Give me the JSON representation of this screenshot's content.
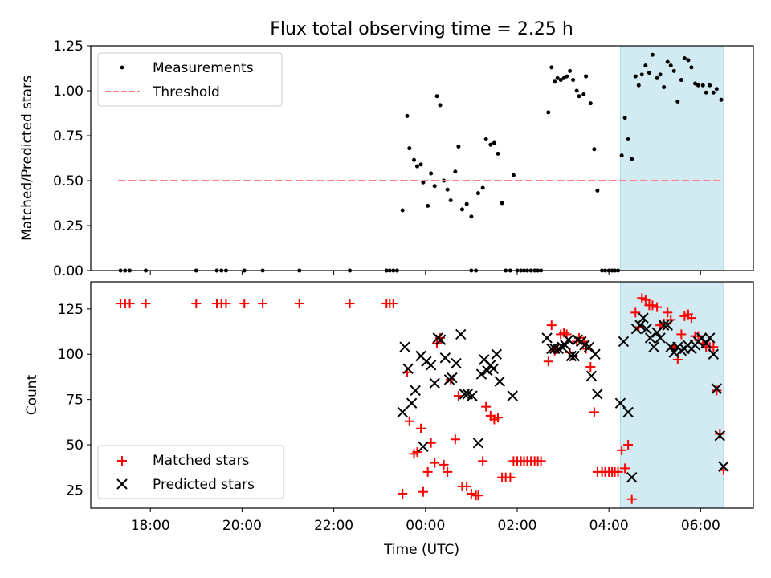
{
  "chart_data": {
    "type": "scatter",
    "title": "Flux total observing time = 2.25 h",
    "xlabel": "Time (UTC)",
    "x_unit": "hours since 00:00 UTC",
    "x_ticks": [
      {
        "v": -6,
        "label": "18:00"
      },
      {
        "v": -4,
        "label": "20:00"
      },
      {
        "v": -2,
        "label": "22:00"
      },
      {
        "v": 0,
        "label": "00:00"
      },
      {
        "v": 2,
        "label": "02:00"
      },
      {
        "v": 4,
        "label": "04:00"
      },
      {
        "v": 6,
        "label": "06:00"
      }
    ],
    "xlim": [
      -7.3,
      7.15
    ],
    "highlight_span": [
      4.25,
      6.5
    ],
    "highlight_color": "#add8e6",
    "top": {
      "ylabel": "Matched/Predicted stars",
      "ylim": [
        0,
        1.25
      ],
      "y_ticks": [
        {
          "v": 0,
          "label": "0.00"
        },
        {
          "v": 0.25,
          "label": "0.25"
        },
        {
          "v": 0.5,
          "label": "0.50"
        },
        {
          "v": 0.75,
          "label": "0.75"
        },
        {
          "v": 1.0,
          "label": "1.00"
        },
        {
          "v": 1.25,
          "label": "1.25"
        }
      ],
      "threshold": {
        "value": 0.5,
        "x_range": [
          -6.7,
          6.5
        ],
        "color": "#ff7f7f"
      },
      "legend": {
        "loc": "upper left",
        "measurements": "Measurements",
        "threshold": "Threshold"
      },
      "measurements": [
        [
          -6.65,
          0
        ],
        [
          -6.55,
          0
        ],
        [
          -6.45,
          0
        ],
        [
          -6.1,
          0
        ],
        [
          -5.0,
          0
        ],
        [
          -4.55,
          0
        ],
        [
          -4.45,
          0
        ],
        [
          -4.35,
          0
        ],
        [
          -3.95,
          0
        ],
        [
          -3.55,
          0
        ],
        [
          -2.75,
          0
        ],
        [
          -1.65,
          0
        ],
        [
          -0.85,
          0
        ],
        [
          -0.78,
          0
        ],
        [
          -0.7,
          0
        ],
        [
          -0.62,
          0
        ],
        [
          -0.5,
          0.335
        ],
        [
          -0.4,
          0.86
        ],
        [
          -0.35,
          0.68
        ],
        [
          -0.25,
          0.615
        ],
        [
          -0.18,
          0.58
        ],
        [
          -0.1,
          0.59
        ],
        [
          -0.05,
          0.49
        ],
        [
          0.05,
          0.36
        ],
        [
          0.12,
          0.54
        ],
        [
          0.2,
          0.47
        ],
        [
          0.25,
          0.97
        ],
        [
          0.32,
          0.92
        ],
        [
          0.4,
          0.5
        ],
        [
          0.48,
          0.45
        ],
        [
          0.55,
          0.39
        ],
        [
          0.65,
          0.55
        ],
        [
          0.72,
          0.69
        ],
        [
          0.8,
          0.34
        ],
        [
          0.9,
          0.37
        ],
        [
          1.0,
          0.3
        ],
        [
          1.15,
          0.43
        ],
        [
          1.25,
          0.46
        ],
        [
          1.32,
          0.73
        ],
        [
          1.42,
          0.7
        ],
        [
          1.5,
          0.71
        ],
        [
          1.58,
          0.65
        ],
        [
          1.67,
          0.375
        ],
        [
          1.92,
          0.53
        ],
        [
          1.0,
          0
        ],
        [
          1.1,
          0
        ],
        [
          1.75,
          0
        ],
        [
          1.85,
          0
        ],
        [
          2.0,
          0
        ],
        [
          2.08,
          0
        ],
        [
          2.15,
          0
        ],
        [
          2.22,
          0
        ],
        [
          2.3,
          0
        ],
        [
          2.38,
          0
        ],
        [
          2.45,
          0
        ],
        [
          2.52,
          0
        ],
        [
          2.68,
          0.88
        ],
        [
          2.75,
          1.13
        ],
        [
          2.82,
          1.05
        ],
        [
          2.88,
          1.07
        ],
        [
          2.95,
          1.06
        ],
        [
          3.02,
          1.07
        ],
        [
          3.08,
          1.08
        ],
        [
          3.15,
          1.11
        ],
        [
          3.22,
          1.06
        ],
        [
          3.3,
          1.0
        ],
        [
          3.35,
          0.97
        ],
        [
          3.45,
          0.98
        ],
        [
          3.5,
          1.08
        ],
        [
          3.6,
          0.93
        ],
        [
          3.68,
          0.675
        ],
        [
          3.75,
          0.445
        ],
        [
          3.85,
          0
        ],
        [
          3.92,
          0
        ],
        [
          4.0,
          0
        ],
        [
          4.07,
          0
        ],
        [
          4.13,
          0
        ],
        [
          4.2,
          0
        ],
        [
          4.28,
          0.64
        ],
        [
          4.35,
          0.85
        ],
        [
          4.42,
          0.73
        ],
        [
          4.5,
          0.62
        ],
        [
          4.58,
          1.08
        ],
        [
          4.65,
          1.03
        ],
        [
          4.72,
          1.09
        ],
        [
          4.8,
          1.14
        ],
        [
          4.88,
          1.1
        ],
        [
          4.95,
          1.2
        ],
        [
          5.05,
          1.07
        ],
        [
          5.12,
          1.09
        ],
        [
          5.2,
          1.02
        ],
        [
          5.28,
          1.16
        ],
        [
          5.35,
          1.14
        ],
        [
          5.42,
          1.11
        ],
        [
          5.5,
          0.94
        ],
        [
          5.58,
          1.06
        ],
        [
          5.65,
          1.18
        ],
        [
          5.73,
          1.17
        ],
        [
          5.8,
          1.13
        ],
        [
          5.88,
          1.04
        ],
        [
          5.95,
          1.03
        ],
        [
          6.05,
          1.03
        ],
        [
          6.12,
          0.99
        ],
        [
          6.2,
          1.03
        ],
        [
          6.28,
          0.99
        ],
        [
          6.35,
          1.01
        ],
        [
          6.45,
          0.95
        ]
      ]
    },
    "bottom": {
      "ylabel": "Count",
      "ylim": [
        15,
        140
      ],
      "y_ticks": [
        {
          "v": 25,
          "label": "25"
        },
        {
          "v": 50,
          "label": "50"
        },
        {
          "v": 75,
          "label": "75"
        },
        {
          "v": 100,
          "label": "100"
        },
        {
          "v": 125,
          "label": "125"
        }
      ],
      "legend": {
        "loc": "lower left",
        "matched": "Matched stars",
        "predicted": "Predicted stars"
      },
      "matched_color": "#ff0000",
      "predicted_color": "#000000",
      "matched": [
        [
          -6.65,
          128
        ],
        [
          -6.55,
          128
        ],
        [
          -6.45,
          128
        ],
        [
          -6.1,
          128
        ],
        [
          -5.0,
          128
        ],
        [
          -4.55,
          128
        ],
        [
          -4.45,
          128
        ],
        [
          -4.35,
          128
        ],
        [
          -3.95,
          128
        ],
        [
          -3.55,
          128
        ],
        [
          -2.75,
          128
        ],
        [
          -1.65,
          128
        ],
        [
          -0.85,
          128
        ],
        [
          -0.78,
          128
        ],
        [
          -0.7,
          128
        ],
        [
          -0.5,
          23
        ],
        [
          -0.4,
          90
        ],
        [
          -0.35,
          63
        ],
        [
          -0.25,
          45
        ],
        [
          -0.18,
          46
        ],
        [
          -0.1,
          59
        ],
        [
          -0.05,
          24
        ],
        [
          0.05,
          35
        ],
        [
          0.12,
          51
        ],
        [
          0.2,
          40
        ],
        [
          0.25,
          106
        ],
        [
          0.32,
          109
        ],
        [
          0.4,
          39
        ],
        [
          0.48,
          35
        ],
        [
          0.55,
          86
        ],
        [
          0.65,
          53
        ],
        [
          0.72,
          77
        ],
        [
          0.8,
          27
        ],
        [
          0.9,
          27
        ],
        [
          1.0,
          23
        ],
        [
          1.1,
          22
        ],
        [
          1.15,
          22
        ],
        [
          1.25,
          41
        ],
        [
          1.32,
          71
        ],
        [
          1.42,
          66
        ],
        [
          1.5,
          64
        ],
        [
          1.58,
          65
        ],
        [
          1.67,
          32
        ],
        [
          1.75,
          32
        ],
        [
          1.85,
          32
        ],
        [
          1.92,
          41
        ],
        [
          2.0,
          41
        ],
        [
          2.08,
          41
        ],
        [
          2.15,
          41
        ],
        [
          2.22,
          41
        ],
        [
          2.3,
          41
        ],
        [
          2.38,
          41
        ],
        [
          2.45,
          41
        ],
        [
          2.52,
          41
        ],
        [
          2.68,
          96
        ],
        [
          2.75,
          116
        ],
        [
          2.82,
          102
        ],
        [
          2.88,
          103
        ],
        [
          2.95,
          111
        ],
        [
          3.02,
          112
        ],
        [
          3.08,
          111
        ],
        [
          3.15,
          101
        ],
        [
          3.22,
          99
        ],
        [
          3.3,
          107
        ],
        [
          3.35,
          109
        ],
        [
          3.45,
          107
        ],
        [
          3.5,
          103
        ],
        [
          3.6,
          93
        ],
        [
          3.68,
          68
        ],
        [
          3.75,
          35
        ],
        [
          3.85,
          35
        ],
        [
          3.92,
          35
        ],
        [
          4.0,
          35
        ],
        [
          4.07,
          35
        ],
        [
          4.13,
          35
        ],
        [
          4.2,
          35
        ],
        [
          4.28,
          47
        ],
        [
          4.35,
          37
        ],
        [
          4.42,
          50
        ],
        [
          4.5,
          20
        ],
        [
          4.58,
          123
        ],
        [
          4.65,
          115
        ],
        [
          4.72,
          131
        ],
        [
          4.8,
          130
        ],
        [
          4.88,
          127
        ],
        [
          4.95,
          127
        ],
        [
          5.05,
          126
        ],
        [
          5.12,
          116
        ],
        [
          5.2,
          117
        ],
        [
          5.28,
          123
        ],
        [
          5.35,
          119
        ],
        [
          5.42,
          104
        ],
        [
          5.5,
          97
        ],
        [
          5.58,
          111
        ],
        [
          5.65,
          121
        ],
        [
          5.73,
          122
        ],
        [
          5.8,
          120
        ],
        [
          5.88,
          110
        ],
        [
          5.95,
          110
        ],
        [
          6.05,
          106
        ],
        [
          6.12,
          104
        ],
        [
          6.2,
          104
        ],
        [
          6.28,
          104
        ],
        [
          6.35,
          80
        ],
        [
          6.42,
          56
        ],
        [
          6.5,
          36
        ]
      ],
      "predicted": [
        [
          -0.5,
          68
        ],
        [
          -0.45,
          104
        ],
        [
          -0.38,
          92
        ],
        [
          -0.3,
          73
        ],
        [
          -0.22,
          80
        ],
        [
          -0.1,
          99
        ],
        [
          -0.05,
          49
        ],
        [
          0.02,
          96
        ],
        [
          0.12,
          94
        ],
        [
          0.2,
          84
        ],
        [
          0.27,
          109
        ],
        [
          0.33,
          108
        ],
        [
          0.43,
          98
        ],
        [
          0.52,
          86
        ],
        [
          0.58,
          87
        ],
        [
          0.67,
          95
        ],
        [
          0.77,
          111
        ],
        [
          0.85,
          78
        ],
        [
          0.92,
          78
        ],
        [
          1.02,
          77
        ],
        [
          1.15,
          51
        ],
        [
          1.22,
          89
        ],
        [
          1.28,
          97
        ],
        [
          1.35,
          91
        ],
        [
          1.42,
          94
        ],
        [
          1.48,
          92
        ],
        [
          1.55,
          100
        ],
        [
          1.62,
          85
        ],
        [
          1.9,
          77
        ],
        [
          2.65,
          109
        ],
        [
          2.75,
          103
        ],
        [
          2.82,
          103
        ],
        [
          2.9,
          103
        ],
        [
          2.98,
          104
        ],
        [
          3.05,
          105
        ],
        [
          3.12,
          108
        ],
        [
          3.18,
          99
        ],
        [
          3.25,
          99
        ],
        [
          3.32,
          108
        ],
        [
          3.4,
          107
        ],
        [
          3.47,
          105
        ],
        [
          3.57,
          104
        ],
        [
          3.62,
          88
        ],
        [
          3.7,
          100
        ],
        [
          3.75,
          78
        ],
        [
          4.25,
          73
        ],
        [
          4.32,
          107
        ],
        [
          4.42,
          68
        ],
        [
          4.5,
          32
        ],
        [
          4.6,
          114
        ],
        [
          4.68,
          116
        ],
        [
          4.75,
          120
        ],
        [
          4.82,
          114
        ],
        [
          4.9,
          109
        ],
        [
          4.98,
          104
        ],
        [
          5.05,
          112
        ],
        [
          5.12,
          109
        ],
        [
          5.2,
          116
        ],
        [
          5.28,
          116
        ],
        [
          5.35,
          104
        ],
        [
          5.42,
          101
        ],
        [
          5.5,
          104
        ],
        [
          5.58,
          102
        ],
        [
          5.65,
          103
        ],
        [
          5.72,
          105
        ],
        [
          5.8,
          103
        ],
        [
          5.88,
          105
        ],
        [
          5.95,
          107
        ],
        [
          6.02,
          109
        ],
        [
          6.12,
          106
        ],
        [
          6.2,
          109
        ],
        [
          6.28,
          100
        ],
        [
          6.35,
          81
        ],
        [
          6.42,
          55
        ],
        [
          6.5,
          38
        ]
      ]
    }
  }
}
